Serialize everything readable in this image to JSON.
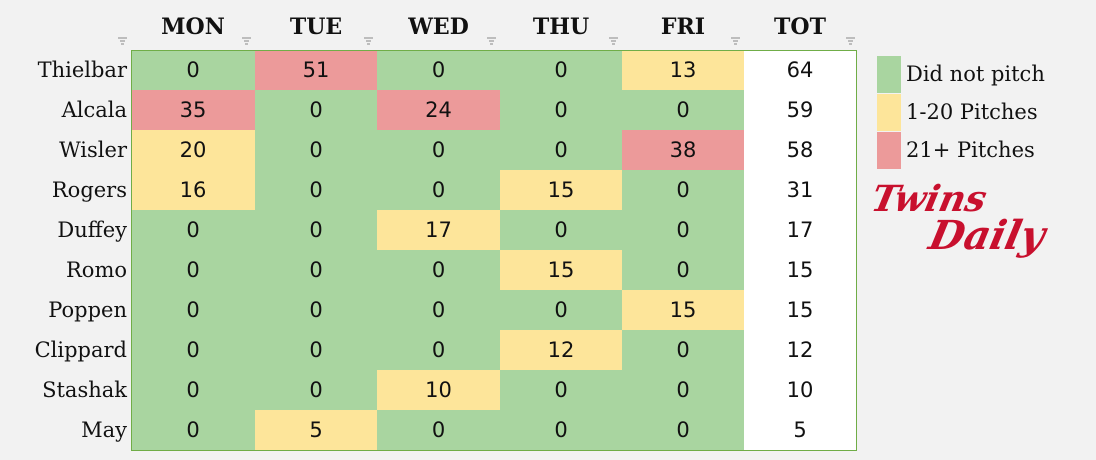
{
  "table": {
    "headers": [
      "MON",
      "TUE",
      "WED",
      "THU",
      "FRI",
      "TOT"
    ],
    "rows": [
      {
        "name": "Thielbar",
        "values": [
          0,
          51,
          0,
          0,
          13,
          64
        ]
      },
      {
        "name": "Alcala",
        "values": [
          35,
          0,
          24,
          0,
          0,
          59
        ]
      },
      {
        "name": "Wisler",
        "values": [
          20,
          0,
          0,
          0,
          38,
          58
        ]
      },
      {
        "name": "Rogers",
        "values": [
          16,
          0,
          0,
          15,
          0,
          31
        ]
      },
      {
        "name": "Duffey",
        "values": [
          0,
          0,
          17,
          0,
          0,
          17
        ]
      },
      {
        "name": "Romo",
        "values": [
          0,
          0,
          0,
          15,
          0,
          15
        ]
      },
      {
        "name": "Poppen",
        "values": [
          0,
          0,
          0,
          0,
          15,
          15
        ]
      },
      {
        "name": "Clippard",
        "values": [
          0,
          0,
          0,
          12,
          0,
          12
        ]
      },
      {
        "name": "Stashak",
        "values": [
          0,
          0,
          10,
          0,
          0,
          10
        ]
      },
      {
        "name": "May",
        "values": [
          0,
          5,
          0,
          0,
          0,
          5
        ]
      }
    ]
  },
  "legend": [
    {
      "label": "Did not pitch",
      "color": "#a9d5a0"
    },
    {
      "label": "1-20 Pitches",
      "color": "#fde59a"
    },
    {
      "label": "21+ Pitches",
      "color": "#ec9a9a"
    }
  ],
  "logo": {
    "text": [
      "Twins",
      "Daily"
    ]
  }
}
